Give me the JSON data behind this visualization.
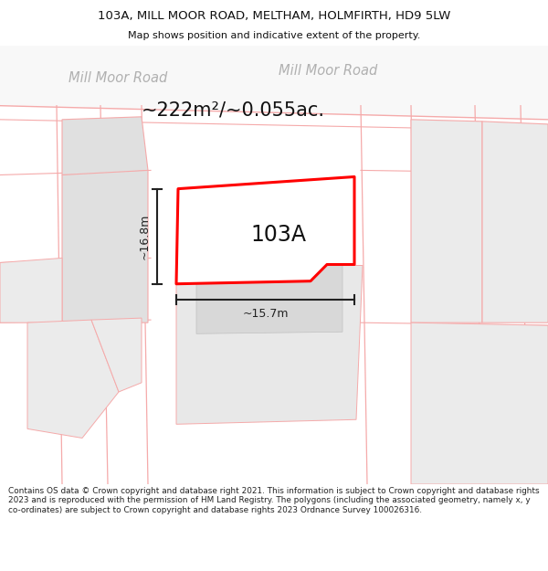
{
  "title_line1": "103A, MILL MOOR ROAD, MELTHAM, HOLMFIRTH, HD9 5LW",
  "title_line2": "Map shows position and indicative extent of the property.",
  "area_label": "~222m²/~0.055ac.",
  "road_label_left": "Mill Moor Road",
  "road_label_right": "Mill Moor Road",
  "property_label": "103A",
  "dim_height": "~16.8m",
  "dim_width": "~15.7m",
  "footer_text": "Contains OS data © Crown copyright and database right 2021. This information is subject to Crown copyright and database rights 2023 and is reproduced with the permission of HM Land Registry. The polygons (including the associated geometry, namely x, y co-ordinates) are subject to Crown copyright and database rights 2023 Ordnance Survey 100026316.",
  "bg_color": "#ffffff",
  "map_bg": "#f0f0f0",
  "plot_outline_color": "#ff0000",
  "grid_line_color": "#f5aaaa",
  "grey_plot_color": "#e0e0e0",
  "light_grey": "#ebebeb",
  "road_white": "#ffffff",
  "dim_line_color": "#222222",
  "text_dark": "#111111",
  "text_road": "#b0b0b0"
}
